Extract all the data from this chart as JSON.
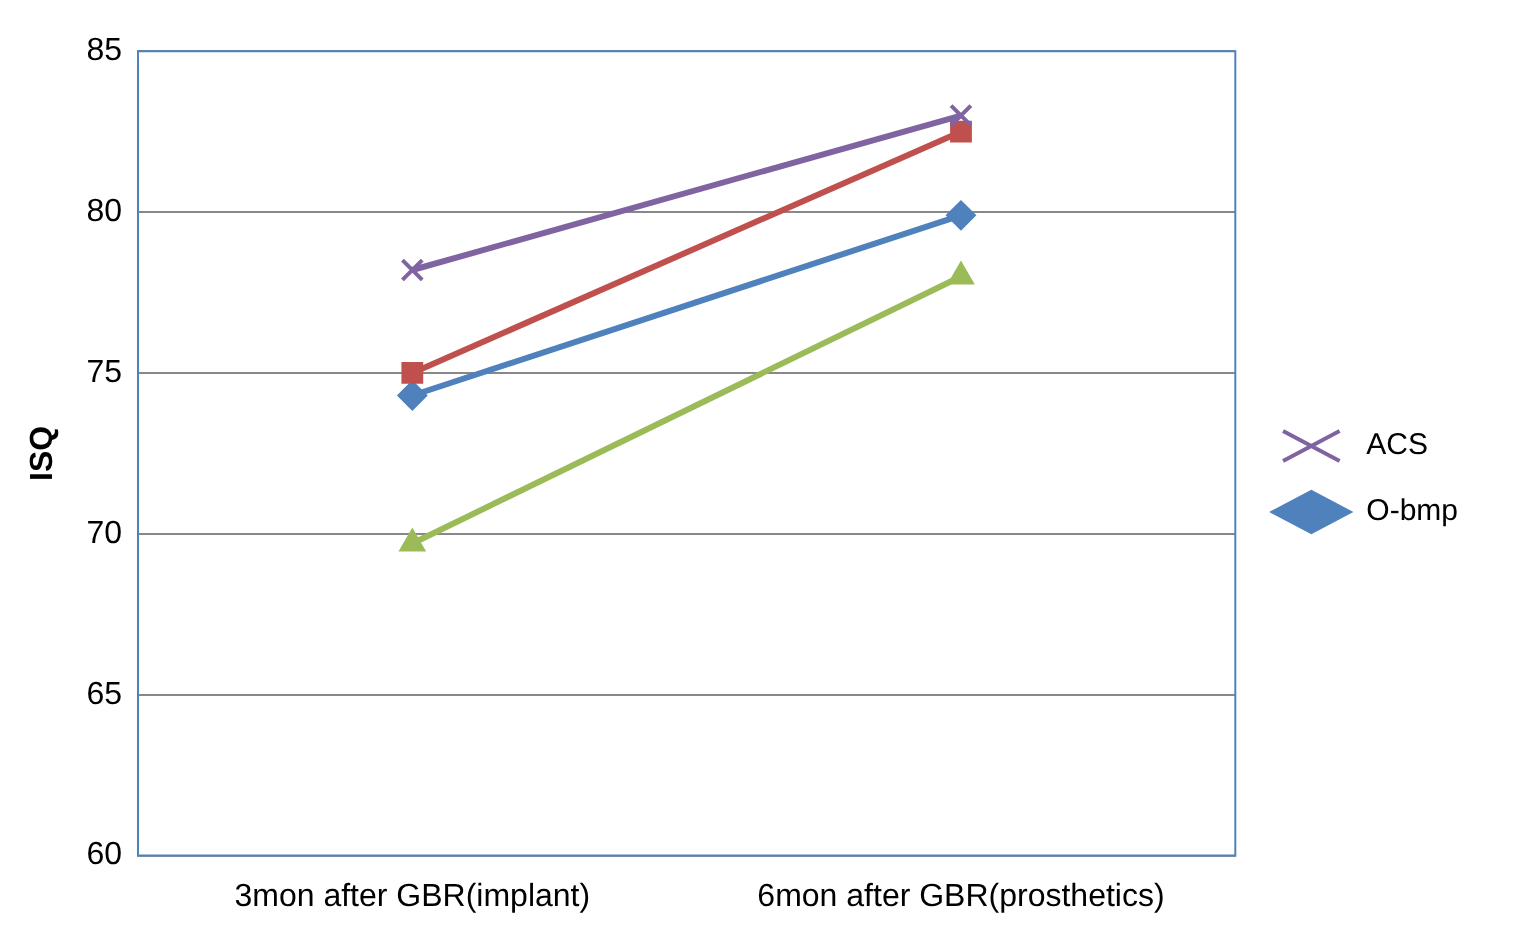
{
  "chart_data": {
    "type": "line",
    "ylabel": "ISQ",
    "categories": [
      "3mon after GBR(implant)",
      "6mon after GBR(prosthetics)"
    ],
    "series": [
      {
        "name": "ACS",
        "color": "#8064a2",
        "values": [
          78.2,
          83
        ],
        "marker": "cross"
      },
      {
        "color": "#c0504d",
        "values": [
          75,
          82.5
        ],
        "marker": "square"
      },
      {
        "name": "O-bmp",
        "color": "#4f81bd",
        "values": [
          74.3,
          79.9
        ],
        "marker": "diamond"
      },
      {
        "color": "#9bbb59",
        "values": [
          69.7,
          78
        ],
        "marker": "triangle"
      }
    ],
    "ylim": [
      60,
      85
    ],
    "yticks": [
      60,
      65,
      70,
      75,
      80,
      85
    ],
    "grid": "y",
    "legend": "right"
  }
}
